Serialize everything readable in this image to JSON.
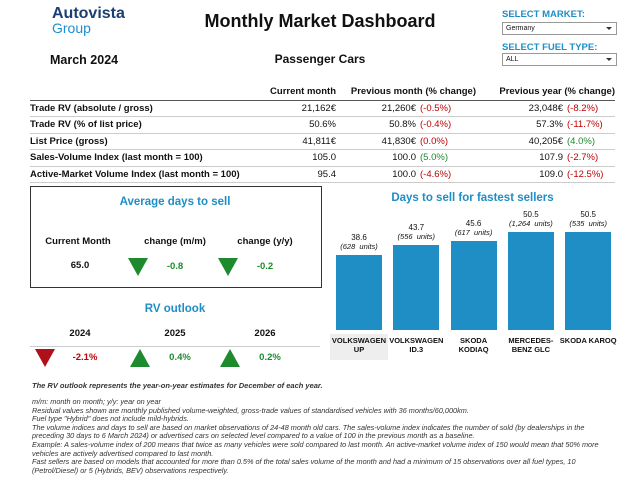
{
  "logo": {
    "name": "Autovista",
    "sub": "Group"
  },
  "header": {
    "title": "Monthly Market Dashboard",
    "date": "March 2024",
    "segment": "Passenger Cars"
  },
  "filters": [
    {
      "label": "SELECT MARKET:",
      "value": "Germany"
    },
    {
      "label": "SELECT FUEL TYPE:",
      "value": "ALL"
    }
  ],
  "table": {
    "columns": [
      "Current month",
      "Previous month (% change)",
      "Previous year (% change)"
    ],
    "rows": [
      {
        "label": "Trade RV (absolute / gross)",
        "current": "21,162€",
        "previous": "21,260€",
        "previous_change": "(-0.5%)",
        "year": "23,048€",
        "year_change": "(-8.2%)"
      },
      {
        "label": "Trade RV (% of list price)",
        "current": "50.6%",
        "previous": "50.8%",
        "previous_change": "(-0.4%)",
        "year": "57.3%",
        "year_change": "(-11.7%)"
      },
      {
        "label": "List Price (gross)",
        "current": "41,811€",
        "previous": "41,830€",
        "previous_change": "(0.0%)",
        "year": "40,205€",
        "year_change": "(4.0%)"
      },
      {
        "label": "Sales-Volume Index (last month = 100)",
        "current": "105.0",
        "previous": "100.0",
        "previous_change": "(5.0%)",
        "year": "107.9",
        "year_change": "(-2.7%)"
      },
      {
        "label": "Active-Market Volume Index (last month = 100)",
        "current": "95.4",
        "previous": "100.0",
        "previous_change": "(-4.6%)",
        "year": "109.0",
        "year_change": "(-12.5%)"
      }
    ]
  },
  "avg_days": {
    "title": "Average days to sell",
    "columns": [
      "Current Month",
      "change (m/m)",
      "change (y/y)"
    ],
    "current": "65.0",
    "changes": [
      "-0.8",
      "-0.2"
    ]
  },
  "rv_outlook": {
    "title": "RV outlook",
    "years": [
      "2024",
      "2025",
      "2026"
    ],
    "values": [
      "-2.1%",
      "0.4%",
      "0.2%"
    ]
  },
  "chart_data": {
    "type": "bar",
    "title": "Days to sell for fastest sellers",
    "categories": [
      "VOLKSWAGEN UP",
      "VOLKSWAGEN ID.3",
      "SKODA KODIAQ",
      "MERCEDES-BENZ GLC",
      "SKODA KAROQ"
    ],
    "values": [
      38.6,
      43.7,
      45.6,
      50.5,
      50.5
    ],
    "annotations": [
      "(628  units)",
      "(556  units)",
      "(617  units)",
      "(1,264  units)",
      "(535  units)"
    ],
    "color": "#1f8ec4",
    "ylim": [
      0,
      55
    ]
  },
  "notes": {
    "highlight": "The RV outlook represents the year-on-year estimates for December of each year.",
    "lines": [
      "m/m: month on month; y/y: year on year",
      "Residual values shown are monthly published volume-weighted, gross-trade values of standardised vehicles with 36 months/60,000km.",
      "Fuel type \"Hybrid\" does not include mild-hybrids.",
      "The volume indices and days to sell are based on market observations of 24-48 month old cars. The sales-volume index indicates the number of sold (by dealerships in the preceding 30 days to 6 March 2024) or advertised cars on selected level compared to a value of 100 in the previous month as a baseline.",
      "Example: A sales-volume index of 200 means that twice as many vehicles were sold compared to last month. An active-market volume index of 150 would mean that 50% more vehicles are actively advertised compared to last month.",
      "Fast sellers are based on models that accounted for more than 0.5% of the total sales volume of the month and had a minimum of 15 observations over all fuel types, 10 (Petrol/Diesel) or 5 (Hybrids, BEV) observations respectively."
    ]
  }
}
